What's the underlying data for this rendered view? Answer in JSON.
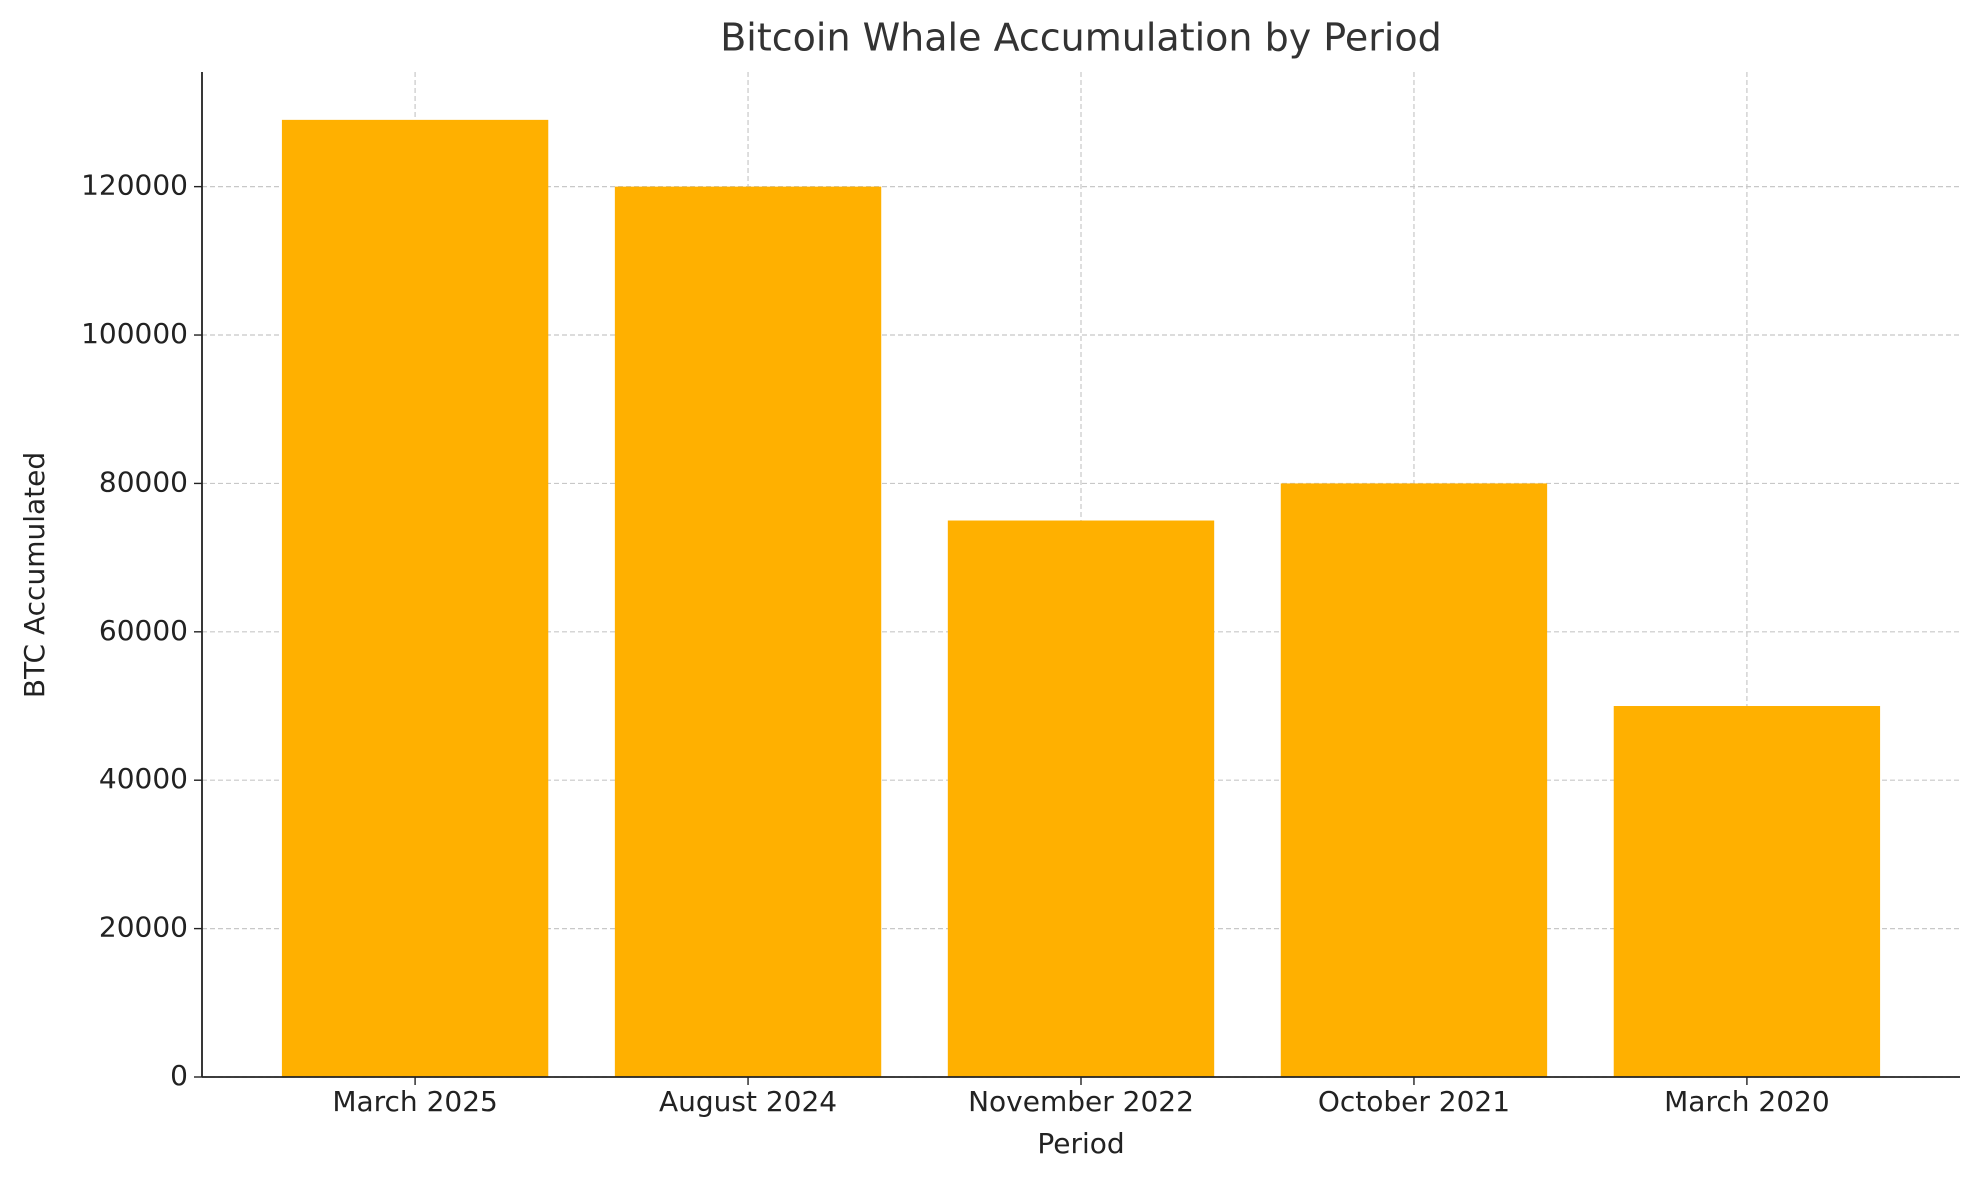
{
  "chart_data": {
    "type": "bar",
    "title": "Bitcoin Whale Accumulation by Period",
    "x_label": "Period",
    "y_label": "BTC Accumulated",
    "categories": [
      "March 2025",
      "August 2024",
      "November 2022",
      "October 2021",
      "March 2020"
    ],
    "values": [
      129000,
      120000,
      75000,
      80000,
      50000
    ],
    "color": "#ffb000",
    "ylim": [
      0,
      135450
    ],
    "yticks": [
      0,
      20000,
      40000,
      60000,
      80000,
      100000,
      120000
    ],
    "grid": true
  }
}
